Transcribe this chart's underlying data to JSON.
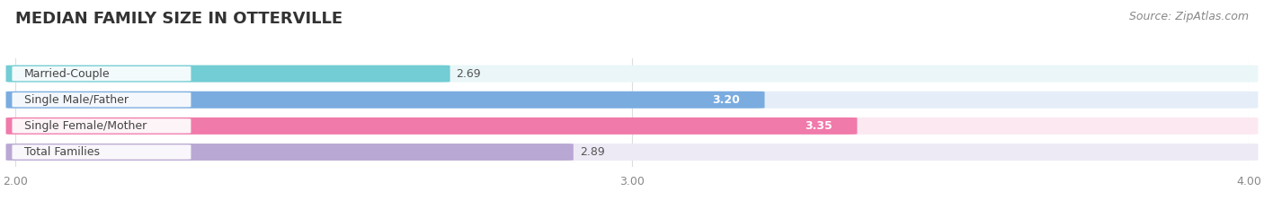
{
  "title": "MEDIAN FAMILY SIZE IN OTTERVILLE",
  "source": "Source: ZipAtlas.com",
  "categories": [
    "Married-Couple",
    "Single Male/Father",
    "Single Female/Mother",
    "Total Families"
  ],
  "values": [
    2.69,
    3.2,
    3.35,
    2.89
  ],
  "bar_colors": [
    "#72cdd4",
    "#7aace0",
    "#f07aaa",
    "#b9a8d4"
  ],
  "bar_bg_colors": [
    "#eaf6f7",
    "#e5eef8",
    "#fce8f1",
    "#ede9f5"
  ],
  "value_inside": [
    false,
    true,
    true,
    false
  ],
  "xmin": 2.0,
  "xmax": 4.0,
  "xticks": [
    2.0,
    3.0,
    4.0
  ],
  "bar_height": 0.62,
  "figsize": [
    14.06,
    2.33
  ],
  "dpi": 100,
  "title_fontsize": 13,
  "label_fontsize": 9,
  "value_fontsize": 9,
  "tick_fontsize": 9,
  "source_fontsize": 9,
  "background_color": "#ffffff"
}
